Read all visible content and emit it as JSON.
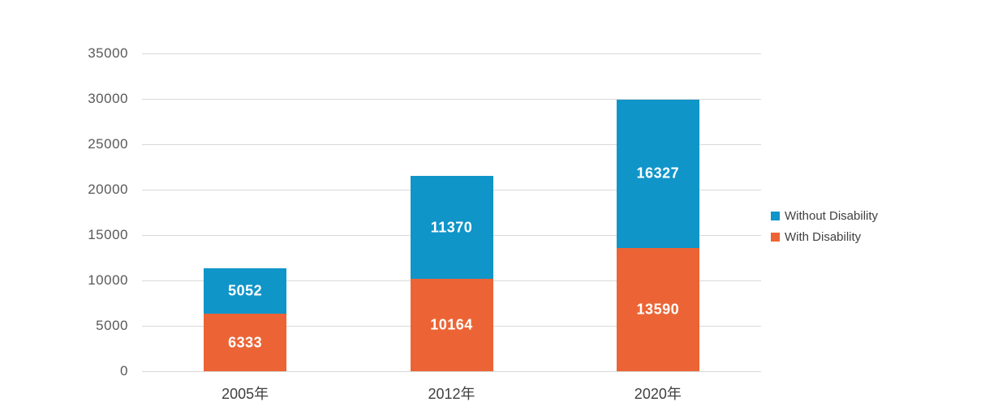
{
  "chart_data": {
    "type": "bar",
    "variant": "stacked-column",
    "categories": [
      "2005年",
      "2012年",
      "2020年"
    ],
    "series": [
      {
        "name": "With Disability",
        "color": "#ec6435",
        "values": [
          6333,
          10164,
          13590
        ]
      },
      {
        "name": "Without Disability",
        "color": "#1095c9",
        "values": [
          5052,
          11370,
          16327
        ]
      }
    ],
    "stack_order": "bottom-to-top",
    "data_labels": {
      "shown": true,
      "color": "#ffffff",
      "bold": true
    },
    "title": "",
    "xlabel": "",
    "ylabel": "",
    "ylim": [
      0,
      35000
    ],
    "yticks": [
      0,
      5000,
      10000,
      15000,
      20000,
      25000,
      30000,
      35000
    ],
    "grid": true,
    "gridline_color": "#d9d9d9",
    "tick_label_color": "#595959",
    "legend_position": "right",
    "legend": [
      {
        "label": "Without Disability",
        "color": "#1095c9"
      },
      {
        "label": "With Disability",
        "color": "#ec6435"
      }
    ]
  }
}
